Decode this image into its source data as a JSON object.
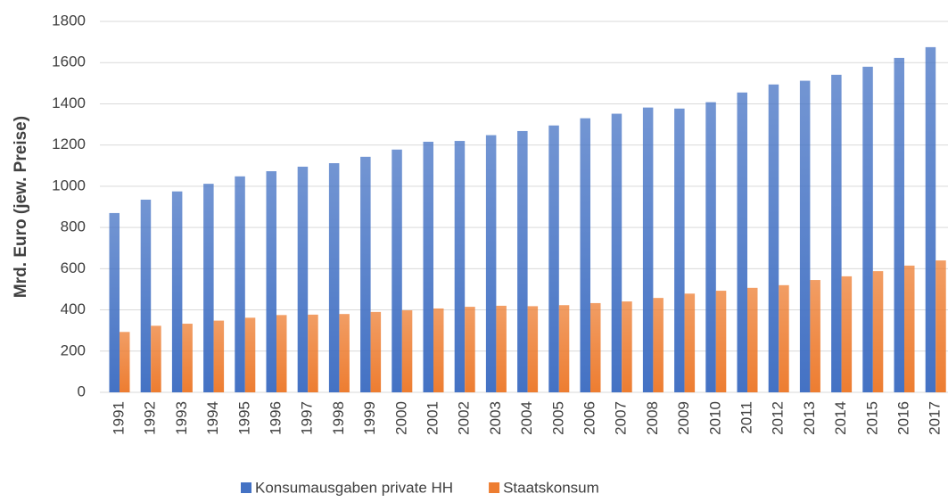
{
  "chart_data": {
    "type": "bar",
    "y_label": "Mrd. Euro (jew. Preise)",
    "categories": [
      "1991",
      "1992",
      "1993",
      "1994",
      "1995",
      "1996",
      "1997",
      "1998",
      "1999",
      "2000",
      "2001",
      "2002",
      "2003",
      "2004",
      "2005",
      "2006",
      "2007",
      "2008",
      "2009",
      "2010",
      "2011",
      "2012",
      "2013",
      "2014",
      "2015",
      "2016",
      "2017"
    ],
    "series": [
      {
        "name": "Konsumausgaben private HH",
        "color": "#4472c4",
        "values": [
          870,
          935,
          975,
          1012,
          1048,
          1073,
          1095,
          1112,
          1143,
          1178,
          1216,
          1220,
          1248,
          1268,
          1295,
          1330,
          1352,
          1382,
          1377,
          1408,
          1455,
          1494,
          1512,
          1541,
          1580,
          1623,
          1675
        ]
      },
      {
        "name": "Staatskonsum",
        "color": "#ed7d31",
        "values": [
          293,
          323,
          333,
          348,
          362,
          375,
          377,
          380,
          390,
          398,
          407,
          415,
          420,
          418,
          423,
          433,
          441,
          458,
          479,
          493,
          507,
          520,
          545,
          563,
          588,
          615,
          640
        ]
      }
    ],
    "ylim": [
      0,
      1800
    ],
    "yticks": [
      0,
      200,
      400,
      600,
      800,
      1000,
      1200,
      1400,
      1600,
      1800
    ],
    "grid": true,
    "legend": "bottom"
  }
}
